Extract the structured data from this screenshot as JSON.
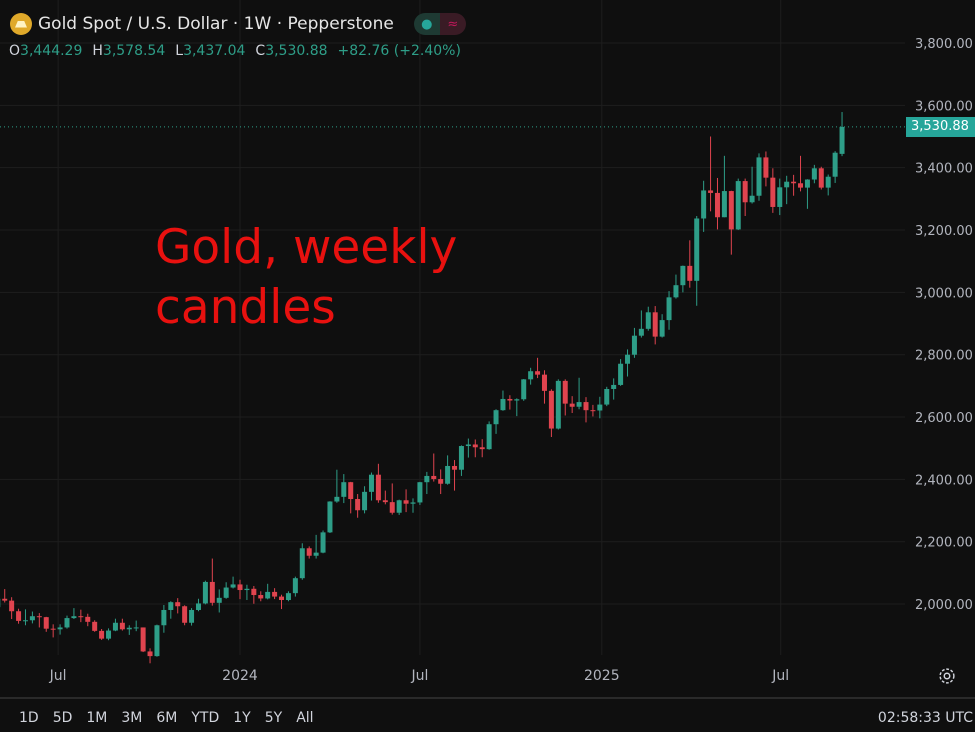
{
  "header": {
    "title": "Gold Spot / U.S. Dollar · 1W · Pepperstone",
    "icon": "gold-bars-icon",
    "ohlc": {
      "o_label": "O",
      "o": "3,444.29",
      "h_label": "H",
      "h": "3,578.54",
      "l_label": "L",
      "l": "3,437.04",
      "c_label": "C",
      "c": "3,530.88",
      "change": "+82.76 (+2.40%)"
    }
  },
  "annotation": {
    "line1": "Gold, weekly",
    "line2": "candles"
  },
  "last_price_label": "3,530.88",
  "footer": {
    "ranges": [
      "1D",
      "5D",
      "1M",
      "3M",
      "6M",
      "YTD",
      "1Y",
      "5Y",
      "All"
    ],
    "clock": "02:58:33 UTC"
  },
  "colors": {
    "up": "#2e9e88",
    "down": "#e0444f",
    "background": "#0f0f0f",
    "annotation": "#e8110f"
  },
  "chart_data": {
    "type": "candlestick",
    "interval": "1W",
    "ylim": [
      1800,
      3850
    ],
    "y_ticks": [
      "2,000.00",
      "2,200.00",
      "2,400.00",
      "2,600.00",
      "2,800.00",
      "3,000.00",
      "3,200.00",
      "3,400.00",
      "3,600.00",
      "3,800.00"
    ],
    "y_tick_values": [
      2000,
      2200,
      2400,
      2600,
      2800,
      3000,
      3200,
      3400,
      3600,
      3800
    ],
    "x_ticks": [
      {
        "label": "Jul",
        "date": "2023-07-01"
      },
      {
        "label": "2024",
        "date": "2024-01-01"
      },
      {
        "label": "Jul",
        "date": "2024-07-01"
      },
      {
        "label": "2025",
        "date": "2025-01-01"
      },
      {
        "label": "Jul",
        "date": "2025-07-01"
      }
    ],
    "last_price": 3530.88,
    "grid": true,
    "candles": [
      [
        "2023-05-01",
        1990,
        2081,
        1977,
        2017
      ],
      [
        "2023-05-08",
        2017,
        2048,
        2005,
        2011
      ],
      [
        "2023-05-15",
        2011,
        2022,
        1952,
        1977
      ],
      [
        "2023-05-22",
        1977,
        1985,
        1937,
        1946
      ],
      [
        "2023-05-29",
        1946,
        1983,
        1932,
        1948
      ],
      [
        "2023-06-05",
        1948,
        1976,
        1938,
        1961
      ],
      [
        "2023-06-12",
        1961,
        1971,
        1925,
        1958
      ],
      [
        "2023-06-19",
        1958,
        1959,
        1911,
        1921
      ],
      [
        "2023-06-26",
        1921,
        1935,
        1893,
        1919
      ],
      [
        "2023-07-03",
        1919,
        1935,
        1902,
        1925
      ],
      [
        "2023-07-10",
        1925,
        1963,
        1921,
        1955
      ],
      [
        "2023-07-17",
        1955,
        1987,
        1952,
        1961
      ],
      [
        "2023-07-24",
        1961,
        1982,
        1942,
        1959
      ],
      [
        "2023-07-31",
        1959,
        1969,
        1929,
        1943
      ],
      [
        "2023-08-07",
        1943,
        1948,
        1911,
        1914
      ],
      [
        "2023-08-14",
        1914,
        1920,
        1885,
        1889
      ],
      [
        "2023-08-21",
        1889,
        1922,
        1884,
        1915
      ],
      [
        "2023-08-28",
        1915,
        1953,
        1913,
        1940
      ],
      [
        "2023-09-04",
        1940,
        1953,
        1915,
        1919
      ],
      [
        "2023-09-11",
        1919,
        1932,
        1901,
        1924
      ],
      [
        "2023-09-18",
        1924,
        1947,
        1913,
        1925
      ],
      [
        "2023-09-25",
        1925,
        1925,
        1846,
        1848
      ],
      [
        "2023-10-02",
        1848,
        1858,
        1810,
        1833
      ],
      [
        "2023-10-09",
        1833,
        1934,
        1831,
        1932
      ],
      [
        "2023-10-16",
        1932,
        1997,
        1908,
        1981
      ],
      [
        "2023-10-23",
        1981,
        2009,
        1953,
        2006
      ],
      [
        "2023-10-30",
        2006,
        2019,
        1970,
        1993
      ],
      [
        "2023-11-06",
        1993,
        1996,
        1932,
        1940
      ],
      [
        "2023-11-13",
        1940,
        1987,
        1931,
        1981
      ],
      [
        "2023-11-20",
        1981,
        2017,
        1977,
        2002
      ],
      [
        "2023-11-27",
        2002,
        2075,
        1999,
        2071
      ],
      [
        "2023-12-04",
        2071,
        2146,
        1995,
        2004
      ],
      [
        "2023-12-11",
        2004,
        2047,
        1973,
        2020
      ],
      [
        "2023-12-18",
        2020,
        2070,
        2017,
        2053
      ],
      [
        "2023-12-25",
        2053,
        2088,
        2050,
        2063
      ],
      [
        "2024-01-01",
        2063,
        2078,
        2016,
        2045
      ],
      [
        "2024-01-08",
        2045,
        2062,
        2013,
        2049
      ],
      [
        "2024-01-15",
        2049,
        2058,
        2001,
        2029
      ],
      [
        "2024-01-22",
        2029,
        2041,
        2009,
        2018
      ],
      [
        "2024-01-29",
        2018,
        2065,
        2015,
        2039
      ],
      [
        "2024-02-05",
        2039,
        2051,
        2016,
        2024
      ],
      [
        "2024-02-12",
        2024,
        2030,
        1984,
        2013
      ],
      [
        "2024-02-19",
        2013,
        2041,
        2009,
        2035
      ],
      [
        "2024-02-26",
        2035,
        2088,
        2024,
        2083
      ],
      [
        "2024-03-04",
        2083,
        2195,
        2078,
        2179
      ],
      [
        "2024-03-11",
        2179,
        2185,
        2146,
        2155
      ],
      [
        "2024-03-18",
        2155,
        2222,
        2146,
        2165
      ],
      [
        "2024-03-25",
        2165,
        2236,
        2163,
        2230
      ],
      [
        "2024-04-01",
        2230,
        2330,
        2228,
        2329
      ],
      [
        "2024-04-08",
        2329,
        2431,
        2325,
        2344
      ],
      [
        "2024-04-15",
        2344,
        2417,
        2324,
        2391
      ],
      [
        "2024-04-22",
        2391,
        2392,
        2291,
        2337
      ],
      [
        "2024-04-29",
        2337,
        2353,
        2277,
        2301
      ],
      [
        "2024-05-06",
        2301,
        2378,
        2291,
        2360
      ],
      [
        "2024-05-13",
        2360,
        2422,
        2332,
        2415
      ],
      [
        "2024-05-20",
        2415,
        2450,
        2325,
        2333
      ],
      [
        "2024-05-27",
        2333,
        2364,
        2320,
        2327
      ],
      [
        "2024-06-03",
        2327,
        2387,
        2287,
        2293
      ],
      [
        "2024-06-10",
        2293,
        2335,
        2286,
        2333
      ],
      [
        "2024-06-17",
        2333,
        2368,
        2295,
        2322
      ],
      [
        "2024-06-24",
        2322,
        2339,
        2293,
        2326
      ],
      [
        "2024-07-01",
        2326,
        2392,
        2318,
        2391
      ],
      [
        "2024-07-08",
        2391,
        2424,
        2353,
        2411
      ],
      [
        "2024-07-15",
        2411,
        2483,
        2393,
        2401
      ],
      [
        "2024-07-22",
        2401,
        2432,
        2353,
        2386
      ],
      [
        "2024-07-29",
        2386,
        2477,
        2383,
        2443
      ],
      [
        "2024-08-05",
        2443,
        2462,
        2364,
        2431
      ],
      [
        "2024-08-12",
        2431,
        2509,
        2411,
        2507
      ],
      [
        "2024-08-19",
        2507,
        2531,
        2470,
        2512
      ],
      [
        "2024-08-26",
        2512,
        2528,
        2471,
        2503
      ],
      [
        "2024-09-02",
        2503,
        2529,
        2471,
        2497
      ],
      [
        "2024-09-09",
        2497,
        2586,
        2495,
        2577
      ],
      [
        "2024-09-16",
        2577,
        2625,
        2546,
        2622
      ],
      [
        "2024-09-23",
        2622,
        2685,
        2620,
        2658
      ],
      [
        "2024-09-30",
        2658,
        2670,
        2624,
        2653
      ],
      [
        "2024-10-07",
        2653,
        2660,
        2603,
        2657
      ],
      [
        "2024-10-14",
        2657,
        2722,
        2652,
        2721
      ],
      [
        "2024-10-21",
        2721,
        2758,
        2704,
        2747
      ],
      [
        "2024-10-28",
        2747,
        2790,
        2725,
        2736
      ],
      [
        "2024-11-04",
        2736,
        2750,
        2643,
        2684
      ],
      [
        "2024-11-11",
        2684,
        2689,
        2536,
        2563
      ],
      [
        "2024-11-18",
        2563,
        2721,
        2560,
        2716
      ],
      [
        "2024-11-25",
        2716,
        2721,
        2605,
        2643
      ],
      [
        "2024-12-02",
        2643,
        2667,
        2613,
        2633
      ],
      [
        "2024-12-09",
        2633,
        2726,
        2625,
        2648
      ],
      [
        "2024-12-16",
        2648,
        2664,
        2583,
        2622
      ],
      [
        "2024-12-23",
        2622,
        2639,
        2602,
        2621
      ],
      [
        "2024-12-30",
        2621,
        2665,
        2596,
        2640
      ],
      [
        "2025-01-06",
        2640,
        2697,
        2635,
        2690
      ],
      [
        "2025-01-13",
        2690,
        2724,
        2656,
        2703
      ],
      [
        "2025-01-20",
        2703,
        2786,
        2700,
        2771
      ],
      [
        "2025-01-27",
        2771,
        2817,
        2730,
        2800
      ],
      [
        "2025-02-03",
        2800,
        2886,
        2790,
        2861
      ],
      [
        "2025-02-10",
        2861,
        2942,
        2855,
        2883
      ],
      [
        "2025-02-17",
        2883,
        2954,
        2877,
        2936
      ],
      [
        "2025-02-24",
        2936,
        2956,
        2833,
        2858
      ],
      [
        "2025-03-03",
        2858,
        2930,
        2855,
        2911
      ],
      [
        "2025-03-10",
        2911,
        3004,
        2880,
        2984
      ],
      [
        "2025-03-17",
        2984,
        3057,
        2980,
        3023
      ],
      [
        "2025-03-24",
        3023,
        3086,
        3000,
        3085
      ],
      [
        "2025-03-31",
        3085,
        3167,
        3015,
        3037
      ],
      [
        "2025-04-07",
        3037,
        3245,
        2957,
        3237
      ],
      [
        "2025-04-14",
        3237,
        3358,
        3194,
        3327
      ],
      [
        "2025-04-21",
        3327,
        3500,
        3260,
        3319
      ],
      [
        "2025-04-28",
        3319,
        3367,
        3202,
        3241
      ],
      [
        "2025-05-05",
        3241,
        3438,
        3241,
        3325
      ],
      [
        "2025-05-12",
        3325,
        3326,
        3121,
        3202
      ],
      [
        "2025-05-19",
        3202,
        3365,
        3200,
        3357
      ],
      [
        "2025-05-26",
        3357,
        3365,
        3245,
        3289
      ],
      [
        "2025-06-02",
        3289,
        3403,
        3285,
        3310
      ],
      [
        "2025-06-09",
        3310,
        3446,
        3294,
        3433
      ],
      [
        "2025-06-16",
        3433,
        3452,
        3340,
        3368
      ],
      [
        "2025-06-23",
        3368,
        3398,
        3255,
        3274
      ],
      [
        "2025-06-30",
        3274,
        3365,
        3248,
        3337
      ],
      [
        "2025-07-07",
        3337,
        3374,
        3283,
        3355
      ],
      [
        "2025-07-14",
        3355,
        3377,
        3310,
        3350
      ],
      [
        "2025-07-21",
        3350,
        3438,
        3324,
        3336
      ],
      [
        "2025-07-28",
        3336,
        3363,
        3268,
        3362
      ],
      [
        "2025-08-04",
        3362,
        3409,
        3350,
        3398
      ],
      [
        "2025-08-11",
        3398,
        3403,
        3330,
        3336
      ],
      [
        "2025-08-18",
        3336,
        3378,
        3311,
        3371
      ],
      [
        "2025-08-25",
        3371,
        3453,
        3351,
        3448
      ],
      [
        "2025-09-01",
        3444.29,
        3578.54,
        3437.04,
        3530.88
      ]
    ]
  }
}
